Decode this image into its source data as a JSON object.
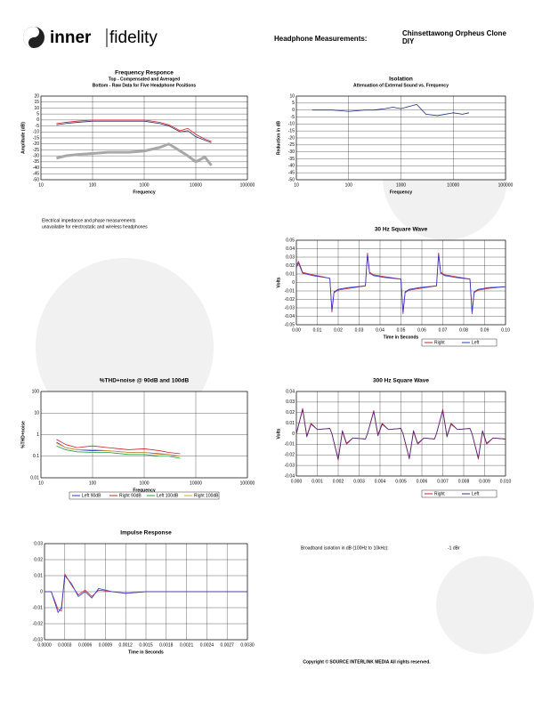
{
  "header": {
    "brand": [
      "inner",
      "fidelity"
    ],
    "label": "Headphone Measurements:",
    "model": [
      "Chinsettawong Orpheus Clone",
      "DIY"
    ]
  },
  "notes": [
    "Electrical impedance and phase measurements",
    "unavailable for electrostatic and wireless headphones"
  ],
  "isolation_summary": {
    "label": "Broadband isolation in dB (100Hz to 10kHz):",
    "value": "-1 dBr"
  },
  "footer": "Copyright © SOURCE INTERLINK MEDIA All rights reserved.",
  "chart_data": [
    {
      "type": "line",
      "title": "Frequency Responce",
      "subtitle": [
        "Top -  Compensated and Averaged",
        "Bottom - Raw Data for Five Headphone Positions"
      ],
      "x_label": "Frequency",
      "y_label": "Amplitude (dB)",
      "xlog": true,
      "grid": true,
      "x": [
        20,
        30,
        50,
        100,
        200,
        300,
        500,
        1000,
        2000,
        3000,
        5000,
        7000,
        10000,
        15000,
        20000
      ],
      "series": [
        {
          "color": "#a8a8a8",
          "values": [
            -32,
            -30,
            -29,
            -28,
            -27,
            -27,
            -27,
            -26,
            -23,
            -20,
            -26,
            -30,
            -35,
            -31,
            -38
          ]
        },
        {
          "color": "#2a2a6a",
          "values": [
            -4,
            -3,
            -2,
            -1,
            -1,
            -1,
            -1,
            -1,
            -3,
            -5,
            -10,
            -9,
            -14,
            -17,
            -19
          ]
        },
        {
          "color": "#d0202e",
          "values": [
            -3,
            -2,
            -1,
            0,
            0,
            0,
            0,
            0,
            -2,
            -4,
            -9,
            -7,
            -12,
            -16,
            -18
          ]
        }
      ],
      "xlim": [
        10,
        100000
      ],
      "xticks": [
        10,
        100,
        1000,
        10000,
        100000
      ],
      "ylim": [
        -50,
        20
      ],
      "yticks": [
        20,
        15,
        10,
        5,
        0,
        -5,
        -10,
        -15,
        -20,
        -25,
        -30,
        -35,
        -40,
        -45,
        -50
      ]
    },
    {
      "type": "line",
      "title": "Isolation",
      "subtitle": [
        "Attenuation of External Sound vs. Frequency"
      ],
      "x_label": "Frequency",
      "y_label": "Reduction in dB",
      "xlog": true,
      "grid": true,
      "x": [
        20,
        50,
        100,
        200,
        300,
        500,
        700,
        1000,
        2000,
        3000,
        5000,
        10000,
        15000,
        20000
      ],
      "series": [
        {
          "color": "#1a2a80",
          "values": [
            0,
            0,
            -1,
            0,
            0,
            1,
            2,
            1,
            4,
            -3,
            -4,
            -2,
            -3,
            -2
          ]
        }
      ],
      "xlim": [
        10,
        100000
      ],
      "xticks": [
        10,
        100,
        1000,
        10000,
        100000
      ],
      "ylim": [
        -50,
        10
      ],
      "yticks": [
        10,
        5,
        0,
        -5,
        -10,
        -15,
        -20,
        -25,
        -30,
        -35,
        -40,
        -45,
        -50
      ]
    },
    {
      "type": "line",
      "title": "30 Hz Square Wave",
      "x_label": "Time in Seconds",
      "y_label": "Volts",
      "grid": true,
      "legend": "bottom-right",
      "x": [
        0,
        0.001,
        0.003,
        0.008,
        0.016,
        0.017,
        0.018,
        0.02,
        0.025,
        0.033,
        0.034,
        0.035,
        0.037,
        0.042,
        0.05,
        0.051,
        0.052,
        0.054,
        0.059,
        0.067,
        0.068,
        0.069,
        0.071,
        0.076,
        0.083,
        0.084,
        0.085,
        0.087,
        0.092,
        0.1
      ],
      "series": [
        {
          "name": "Right",
          "color": "#d0202e",
          "values": [
            0.02,
            0.025,
            0.012,
            0.009,
            0.005,
            -0.035,
            -0.012,
            -0.009,
            -0.007,
            -0.004,
            0.035,
            0.012,
            0.009,
            0.007,
            0.004,
            -0.037,
            -0.012,
            -0.009,
            -0.007,
            -0.004,
            0.035,
            0.012,
            0.009,
            0.007,
            0.004,
            -0.037,
            -0.012,
            -0.009,
            -0.007,
            -0.005
          ]
        },
        {
          "name": "Left",
          "color": "#2a3ad0",
          "values": [
            0.018,
            0.023,
            0.011,
            0.008,
            0.005,
            -0.033,
            -0.011,
            -0.008,
            -0.006,
            -0.004,
            0.033,
            0.011,
            0.008,
            0.006,
            0.004,
            -0.035,
            -0.011,
            -0.008,
            -0.006,
            -0.004,
            0.033,
            0.011,
            0.008,
            0.006,
            0.004,
            -0.035,
            -0.011,
            -0.008,
            -0.006,
            -0.005
          ]
        }
      ],
      "xlim": [
        0,
        0.1
      ],
      "xticks": [
        {
          "value": 0,
          "label": "0.00"
        },
        0.01,
        0.02,
        0.03,
        0.04,
        0.05,
        0.06,
        0.07,
        0.08,
        0.09,
        {
          "value": 0.1,
          "label": "0.10"
        }
      ],
      "ylim": [
        -0.05,
        0.05
      ],
      "yticks": [
        0.05,
        0.04,
        0.03,
        0.02,
        0.01,
        0,
        -0.01,
        -0.02,
        -0.03,
        -0.04,
        -0.05
      ]
    },
    {
      "type": "line",
      "title": "%THD+noise @ 90dB and 100dB",
      "x_label": "Frequency",
      "y_label": "%THD+noise",
      "xlog": true,
      "ylog": true,
      "grid": true,
      "legend": "bottom",
      "x": [
        20,
        30,
        50,
        100,
        200,
        500,
        1000,
        2000,
        3000,
        5000
      ],
      "series": [
        {
          "name": "Left 90dB",
          "color": "#2a3ad0",
          "values": [
            0.45,
            0.25,
            0.2,
            0.18,
            0.18,
            0.15,
            0.15,
            0.13,
            0.12,
            0.1
          ]
        },
        {
          "name": "Right 90dB",
          "color": "#d0202e",
          "values": [
            0.6,
            0.35,
            0.25,
            0.3,
            0.25,
            0.2,
            0.22,
            0.18,
            0.15,
            0.13
          ]
        },
        {
          "name": "Left 100dB",
          "color": "#20a040",
          "values": [
            0.3,
            0.2,
            0.16,
            0.15,
            0.15,
            0.12,
            0.12,
            0.1,
            0.1,
            0.08
          ]
        },
        {
          "name": "Right 100dB",
          "color": "#e8a020",
          "values": [
            0.4,
            0.25,
            0.2,
            0.2,
            0.18,
            0.15,
            0.15,
            0.12,
            0.12,
            0.1
          ]
        }
      ],
      "xlim": [
        10,
        100000
      ],
      "xticks": [
        10,
        100,
        1000,
        10000,
        100000
      ],
      "ylim": [
        0.01,
        100
      ],
      "yticks": [
        100,
        10,
        1,
        0.1,
        0.01
      ]
    },
    {
      "type": "line",
      "title": "300 Hz Square Wave",
      "y_label": "Volts",
      "grid": true,
      "legend": "bottom-right",
      "x": [
        0,
        0.0003,
        0.0005,
        0.0007,
        0.001,
        0.0016,
        0.0017,
        0.002,
        0.0022,
        0.0024,
        0.0027,
        0.0033,
        0.0034,
        0.0037,
        0.0039,
        0.0041,
        0.0044,
        0.005,
        0.0051,
        0.0054,
        0.0056,
        0.0058,
        0.0061,
        0.0066,
        0.0067,
        0.007,
        0.0072,
        0.0074,
        0.0077,
        0.0083,
        0.0084,
        0.0087,
        0.0089,
        0.0091,
        0.0094,
        0.01
      ],
      "series": [
        {
          "name": "Right",
          "color": "#d0202e",
          "values": [
            0,
            0.024,
            -0.002,
            0.01,
            0.004,
            0.005,
            0,
            -0.025,
            0.002,
            -0.01,
            -0.004,
            -0.005,
            0,
            0.022,
            -0.001,
            0.01,
            0.004,
            0.005,
            0,
            -0.024,
            0.002,
            -0.01,
            -0.004,
            -0.005,
            0,
            0.023,
            -0.002,
            0.01,
            0.004,
            0.005,
            0,
            -0.024,
            0.002,
            -0.01,
            -0.004,
            -0.005
          ]
        },
        {
          "name": "Left",
          "color": "#4a2a80",
          "values": [
            0,
            0.023,
            -0.003,
            0.009,
            0.004,
            0.005,
            0,
            -0.024,
            0.003,
            -0.009,
            -0.004,
            -0.005,
            0,
            0.021,
            -0.002,
            0.009,
            0.004,
            0.005,
            0,
            -0.023,
            0.003,
            -0.009,
            -0.004,
            -0.005,
            0,
            0.022,
            -0.003,
            0.009,
            0.004,
            0.005,
            0,
            -0.023,
            0.003,
            -0.009,
            -0.004,
            -0.005
          ]
        }
      ],
      "xlim": [
        0,
        0.01
      ],
      "xticks": [
        {
          "value": 0,
          "label": "0.000"
        },
        0.001,
        0.002,
        0.003,
        0.004,
        0.005,
        0.006,
        0.007,
        0.008,
        0.009,
        {
          "value": 0.01,
          "label": "0.010"
        }
      ],
      "ylim": [
        -0.04,
        0.04
      ],
      "yticks": [
        0.04,
        0.03,
        0.02,
        0.01,
        0,
        -0.01,
        -0.02,
        -0.03,
        -0.04
      ]
    },
    {
      "type": "line",
      "title": "Impulse Response",
      "x_label": "Time in Seconds",
      "grid": true,
      "x": [
        0,
        0.0001,
        0.0002,
        0.00025,
        0.0003,
        0.0004,
        0.0005,
        0.0006,
        0.0007,
        0.0008,
        0.001,
        0.0012,
        0.0015,
        0.002,
        0.003
      ],
      "series": [
        {
          "color": "#d0202e",
          "values": [
            0,
            0,
            -0.011,
            -0.012,
            0.011,
            0.004,
            -0.002,
            0.001,
            -0.003,
            0.001,
            0,
            -0.001,
            0,
            0,
            0
          ]
        },
        {
          "color": "#2a3ad0",
          "values": [
            0,
            0,
            -0.013,
            -0.01,
            0.01,
            0.005,
            -0.003,
            0,
            -0.004,
            0.002,
            0,
            -0.001,
            0,
            0,
            0
          ]
        }
      ],
      "xlim": [
        0,
        0.003
      ],
      "xticks": [
        {
          "value": 0,
          "label": "0.0000"
        },
        {
          "value": 0.0003,
          "label": "0.0003"
        },
        {
          "value": 0.0006,
          "label": "0.0006"
        },
        {
          "value": 0.0009,
          "label": "0.0009"
        },
        {
          "value": 0.0012,
          "label": "0.0012"
        },
        {
          "value": 0.0015,
          "label": "0.0015"
        },
        {
          "value": 0.0018,
          "label": "0.0018"
        },
        {
          "value": 0.0021,
          "label": "0.0021"
        },
        {
          "value": 0.0024,
          "label": "0.0024"
        },
        {
          "value": 0.0027,
          "label": "0.0027"
        },
        {
          "value": 0.003,
          "label": "0.0030"
        }
      ],
      "ylim": [
        -0.03,
        0.03
      ],
      "yticks": [
        0.03,
        0.02,
        0.01,
        0,
        -0.01,
        -0.02,
        -0.03
      ]
    }
  ]
}
